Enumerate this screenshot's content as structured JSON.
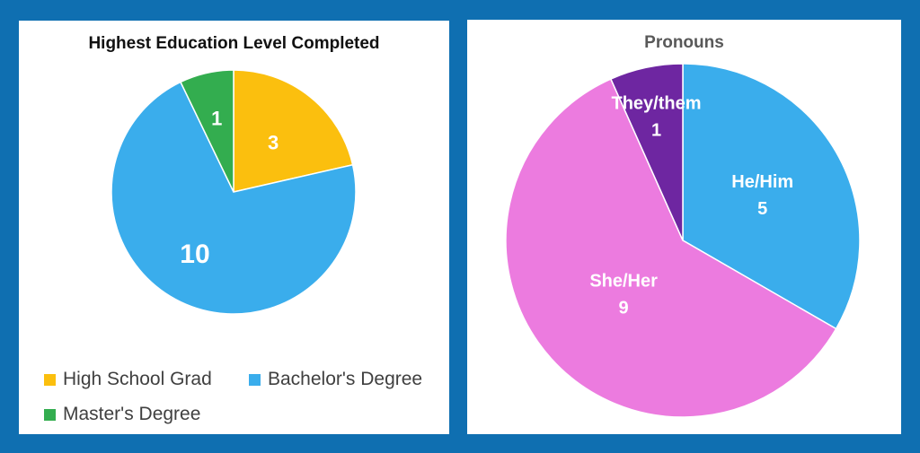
{
  "chart_data": [
    {
      "type": "pie",
      "title": "Highest Education Level Completed",
      "categories": [
        "High School Grad",
        "Bachelor's Degree",
        "Master's Degree"
      ],
      "values": [
        3,
        10,
        1
      ],
      "colors": [
        "#FBBF0E",
        "#3AADEC",
        "#33AD4F"
      ],
      "data_labels": [
        "3",
        "10",
        "1"
      ],
      "legend": "bottom",
      "start_angle": "12 o'clock, clockwise"
    },
    {
      "type": "pie",
      "title": "Pronouns",
      "categories": [
        "He/Him",
        "She/Her",
        "They/them"
      ],
      "values": [
        5,
        9,
        1
      ],
      "colors": [
        "#3AADEC",
        "#EC7BDF",
        "#6E26A1"
      ],
      "data_labels": [
        "He/Him\n5",
        "She/Her\n9",
        "They/them\n1"
      ],
      "legend": "none",
      "start_angle": "12 o'clock, clockwise"
    }
  ]
}
